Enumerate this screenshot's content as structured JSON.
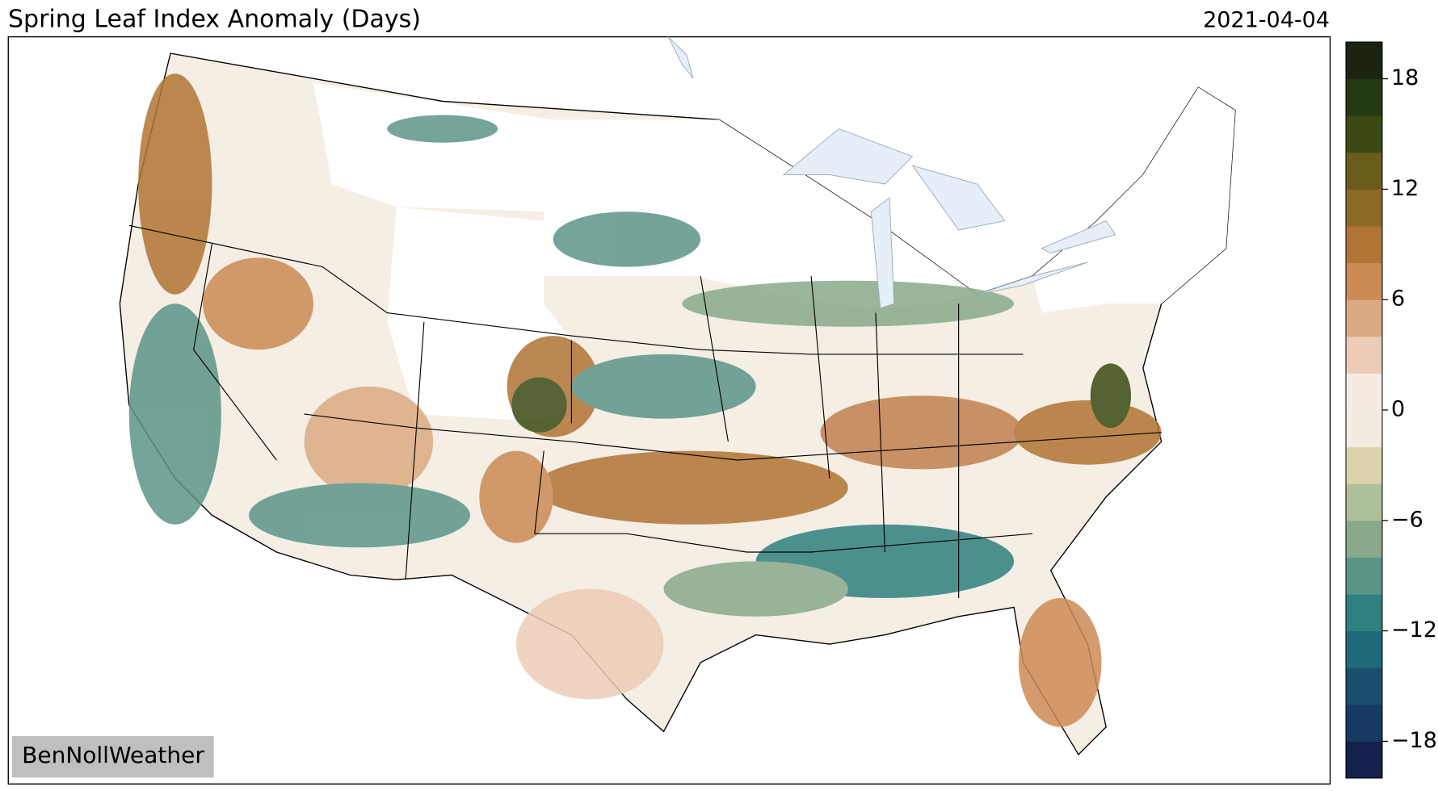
{
  "title": "Spring Leaf Index Anomaly (Days)",
  "date": "2021-04-04",
  "watermark": "BenNollWeather",
  "colorbar": {
    "lim": [
      -20,
      20
    ],
    "ticks": [
      -18,
      -12,
      -6,
      0,
      6,
      12,
      18
    ],
    "tick_labels": [
      "−18",
      "−12",
      "−6",
      "0",
      "6",
      "12",
      "18"
    ],
    "colors": [
      "#14204e",
      "#163a62",
      "#1a4f6e",
      "#1f6a7a",
      "#2f8080",
      "#5c9488",
      "#88a98a",
      "#aebf9c",
      "#dcd3ad",
      "#f2ede0",
      "#f6ebe3",
      "#ecccb6",
      "#dcaa82",
      "#cc8a55",
      "#b07434",
      "#8c6a25",
      "#6a5d1c",
      "#3a4a12",
      "#243a14",
      "#1a2410"
    ]
  }
}
